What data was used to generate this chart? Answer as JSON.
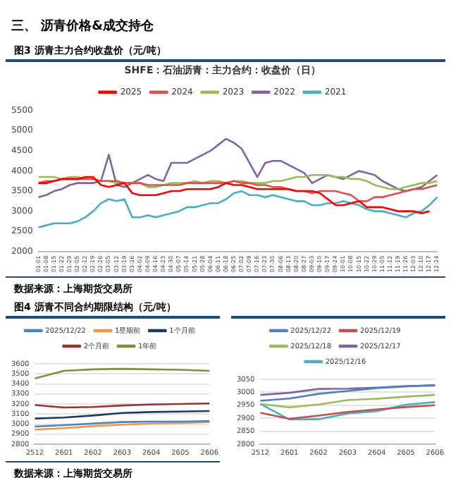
{
  "chart_data": [
    {
      "type": "line",
      "title": "图3 沥青主力合约收盘价（元/吨）",
      "subtitle": "SHFE：石油沥青：主力合约：收盘价（日）",
      "annotations": [
        "三、 沥青价格&成交持仓",
        "数据来源：上海期货交易所"
      ],
      "categories": [
        "01-01",
        "01-08",
        "01-15",
        "01-22",
        "01-29",
        "02-05",
        "02-12",
        "02-19",
        "02-26",
        "03-05",
        "03-12",
        "03-19",
        "03-26",
        "04-02",
        "04-09",
        "04-16",
        "04-23",
        "04-30",
        "05-07",
        "05-14",
        "05-21",
        "05-28",
        "06-04",
        "06-11",
        "06-18",
        "06-25",
        "07-02",
        "07-09",
        "07-16",
        "07-23",
        "07-30",
        "08-06",
        "08-13",
        "08-20",
        "08-27",
        "09-03",
        "09-10",
        "09-17",
        "09-24",
        "10-01",
        "10-08",
        "10-15",
        "10-22",
        "10-29",
        "11-05",
        "11-12",
        "11-19",
        "11-26",
        "12-03",
        "12-10",
        "12-17",
        "12-24"
      ],
      "series": [
        {
          "name": "2025",
          "color": "#ff0000",
          "values": [
            3700,
            3700,
            3750,
            3800,
            3800,
            3800,
            3850,
            3850,
            3650,
            3600,
            3650,
            3700,
            3450,
            3400,
            3400,
            3400,
            3450,
            3500,
            3500,
            3550,
            3550,
            3550,
            3550,
            3600,
            3700,
            3650,
            3650,
            3600,
            3550,
            3550,
            3550,
            3550,
            3550,
            3500,
            3500,
            3500,
            3450,
            3300,
            3150,
            3150,
            3200,
            3250,
            3100,
            3100,
            3100,
            3050,
            3000,
            3000,
            3000,
            2950,
            3000,
            null
          ]
        },
        {
          "name": "2024",
          "color": "#e0504a",
          "values": [
            3700,
            3750,
            3750,
            3800,
            3800,
            3800,
            3800,
            3800,
            3750,
            3750,
            3750,
            3700,
            3700,
            3700,
            3650,
            3650,
            3650,
            3650,
            3650,
            3700,
            3700,
            3700,
            3700,
            3700,
            3700,
            3750,
            3700,
            3700,
            3650,
            3650,
            3600,
            3600,
            3550,
            3500,
            3500,
            3450,
            3500,
            3500,
            3500,
            3450,
            3400,
            3250,
            3250,
            3350,
            3350,
            3400,
            3450,
            3500,
            3550,
            3550,
            3600,
            3650
          ]
        },
        {
          "name": "2023",
          "color": "#9bbb59",
          "values": [
            3850,
            3850,
            3850,
            3800,
            3850,
            3850,
            3800,
            3800,
            3750,
            3750,
            3700,
            3700,
            3700,
            3700,
            3600,
            3600,
            3650,
            3700,
            3700,
            3700,
            3750,
            3700,
            3750,
            3750,
            3700,
            3750,
            3750,
            3700,
            3700,
            3700,
            3750,
            3750,
            3800,
            3850,
            3850,
            3900,
            3900,
            3900,
            3850,
            3850,
            3800,
            3800,
            3750,
            3650,
            3600,
            3550,
            3550,
            3600,
            3650,
            3700,
            3700,
            3750
          ]
        },
        {
          "name": "2022",
          "color": "#8064a2",
          "values": [
            3350,
            3400,
            3500,
            3550,
            3650,
            3700,
            3700,
            3700,
            3750,
            4400,
            3650,
            3600,
            3700,
            3800,
            3900,
            3800,
            3750,
            4200,
            4200,
            4200,
            4300,
            4400,
            4500,
            4650,
            4800,
            4700,
            4550,
            4200,
            3850,
            4200,
            4250,
            4250,
            4150,
            4050,
            3950,
            3700,
            3800,
            3900,
            3850,
            3800,
            3900,
            4000,
            3950,
            3900,
            3750,
            3650,
            3550,
            3500,
            3550,
            3600,
            3750,
            3900
          ]
        },
        {
          "name": "2021",
          "color": "#4bacc6",
          "values": [
            2600,
            2650,
            2700,
            2700,
            2700,
            2750,
            2850,
            3000,
            3200,
            3300,
            3250,
            3300,
            2850,
            2850,
            2900,
            2850,
            2900,
            2950,
            3000,
            3100,
            3100,
            3150,
            3200,
            3200,
            3300,
            3450,
            3500,
            3400,
            3400,
            3350,
            3400,
            3350,
            3300,
            3250,
            3250,
            3150,
            3150,
            3200,
            3200,
            3250,
            3200,
            3150,
            3050,
            3000,
            3000,
            2950,
            2900,
            2850,
            2950,
            3000,
            3150,
            3350
          ]
        }
      ],
      "ylim": [
        2000,
        5500
      ],
      "yticks": [
        2000,
        2500,
        3000,
        3500,
        4000,
        4500,
        5000,
        5500
      ],
      "grid": false,
      "legend": "top",
      "marker": "none",
      "line_style": "solid"
    },
    {
      "type": "line",
      "title": "图4 沥青不同合约期限结构（元/吨）",
      "annotations": [
        "数据来源：上海期货交易所"
      ],
      "categories": [
        "2512",
        "2601",
        "2602",
        "2603",
        "2604",
        "2605",
        "2606"
      ],
      "series": [
        {
          "name": "2025/12/22",
          "color": "#4f81bd",
          "values": [
            2975,
            2990,
            3005,
            3020,
            3025,
            3025,
            3030
          ]
        },
        {
          "name": "1星期前",
          "color": "#f79646",
          "values": [
            2945,
            2960,
            2980,
            2995,
            3005,
            3010,
            3020
          ]
        },
        {
          "name": "1个月前",
          "color": "#1f3864",
          "values": [
            3055,
            3065,
            3085,
            3110,
            3120,
            3125,
            3130
          ]
        },
        {
          "name": "2个月前",
          "color": "#943634",
          "values": [
            3190,
            3165,
            3170,
            3185,
            3195,
            3200,
            3205
          ]
        },
        {
          "name": "1年前",
          "color": "#77933c",
          "values": [
            3455,
            3530,
            3545,
            3550,
            3545,
            3540,
            3530
          ]
        }
      ],
      "ylim": [
        2800,
        3600
      ],
      "yticks": [
        2800,
        2900,
        3000,
        3100,
        3200,
        3300,
        3400,
        3500,
        3600
      ],
      "grid": "y",
      "legend": "top",
      "marker": "none",
      "line_style": "solid"
    },
    {
      "type": "line",
      "categories": [
        "2512",
        "2601",
        "2602",
        "2603",
        "2604",
        "2605",
        "2606"
      ],
      "series": [
        {
          "name": "2025/12/22",
          "color": "#4f81bd",
          "values": [
            2967,
            2976,
            2994,
            3005,
            3016,
            3022,
            3028
          ]
        },
        {
          "name": "2025/12/19",
          "color": "#c0504d",
          "values": [
            2921,
            2898,
            2910,
            2924,
            2934,
            2943,
            2950
          ]
        },
        {
          "name": "2025/12/18",
          "color": "#9bbb59",
          "values": [
            2955,
            2942,
            2953,
            2970,
            2975,
            2983,
            2990
          ]
        },
        {
          "name": "2025/12/17",
          "color": "#8064a2",
          "values": [
            2990,
            2998,
            3013,
            3014,
            3018,
            3024,
            3026
          ]
        },
        {
          "name": "2025/12/16",
          "color": "#4bacc6",
          "values": [
            2955,
            2895,
            2896,
            2918,
            2927,
            2952,
            2962
          ]
        }
      ],
      "ylim": [
        2800,
        3050
      ],
      "yticks": [
        2800,
        2850,
        2900,
        2950,
        3000,
        3050
      ],
      "grid": "y",
      "legend": "top",
      "marker": "none",
      "line_style": "solid"
    }
  ]
}
